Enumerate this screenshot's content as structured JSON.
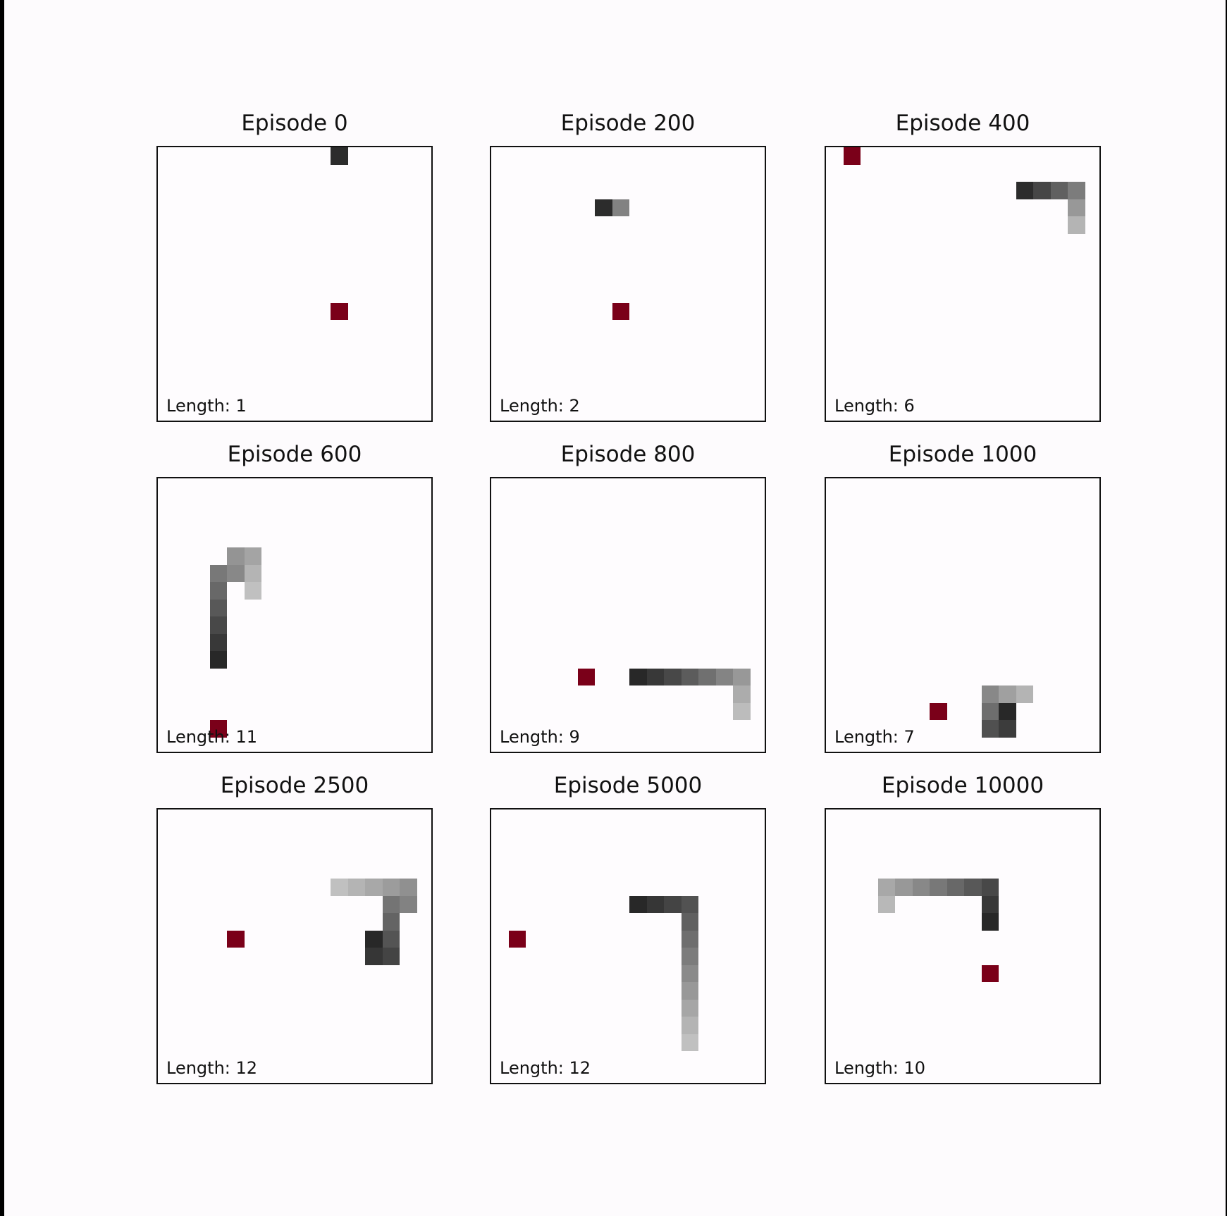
{
  "grid_size": 16,
  "colors": {
    "food": "#7a0019",
    "background": "#fefcfe",
    "border": "#111111"
  },
  "panels": [
    {
      "title": "Episode 0",
      "length_label": "Length: 1",
      "food": [
        10,
        9
      ],
      "snake": [
        [
          10,
          0,
          0.12
        ]
      ]
    },
    {
      "title": "Episode 200",
      "length_label": "Length: 2",
      "food": [
        7,
        9
      ],
      "snake": [
        [
          6,
          3,
          0.12
        ],
        [
          7,
          3,
          0.55
        ]
      ]
    },
    {
      "title": "Episode 400",
      "length_label": "Length: 6",
      "food": [
        1,
        0
      ],
      "snake": [
        [
          11,
          2,
          0.12
        ],
        [
          12,
          2,
          0.25
        ],
        [
          13,
          2,
          0.38
        ],
        [
          14,
          2,
          0.52
        ],
        [
          14,
          3,
          0.66
        ],
        [
          14,
          4,
          0.8
        ]
      ]
    },
    {
      "title": "Episode 600",
      "length_label": "Length: 11",
      "food": [
        3,
        14
      ],
      "snake": [
        [
          3,
          10,
          0.1
        ],
        [
          3,
          9,
          0.18
        ],
        [
          3,
          8,
          0.26
        ],
        [
          3,
          7,
          0.34
        ],
        [
          3,
          6,
          0.42
        ],
        [
          3,
          5,
          0.5
        ],
        [
          4,
          5,
          0.58
        ],
        [
          4,
          4,
          0.64
        ],
        [
          5,
          4,
          0.72
        ],
        [
          5,
          5,
          0.8
        ],
        [
          5,
          6,
          0.86
        ]
      ]
    },
    {
      "title": "Episode 800",
      "length_label": "Length: 9",
      "food": [
        5,
        11
      ],
      "snake": [
        [
          8,
          11,
          0.1
        ],
        [
          9,
          11,
          0.18
        ],
        [
          10,
          11,
          0.26
        ],
        [
          11,
          11,
          0.36
        ],
        [
          12,
          11,
          0.46
        ],
        [
          13,
          11,
          0.56
        ],
        [
          14,
          11,
          0.66
        ],
        [
          14,
          12,
          0.76
        ],
        [
          14,
          13,
          0.84
        ]
      ]
    },
    {
      "title": "Episode 1000",
      "length_label": "Length: 7",
      "food": [
        6,
        13
      ],
      "snake": [
        [
          10,
          13,
          0.1
        ],
        [
          10,
          14,
          0.2
        ],
        [
          9,
          14,
          0.3
        ],
        [
          9,
          13,
          0.45
        ],
        [
          9,
          12,
          0.58
        ],
        [
          10,
          12,
          0.7
        ],
        [
          11,
          12,
          0.8
        ]
      ]
    },
    {
      "title": "Episode 2500",
      "length_label": "Length: 12",
      "food": [
        4,
        7
      ],
      "snake": [
        [
          12,
          7,
          0.1
        ],
        [
          12,
          8,
          0.17
        ],
        [
          13,
          8,
          0.24
        ],
        [
          13,
          7,
          0.32
        ],
        [
          13,
          6,
          0.4
        ],
        [
          13,
          5,
          0.48
        ],
        [
          14,
          5,
          0.55
        ],
        [
          14,
          4,
          0.62
        ],
        [
          13,
          4,
          0.68
        ],
        [
          12,
          4,
          0.74
        ],
        [
          11,
          4,
          0.8
        ],
        [
          10,
          4,
          0.86
        ]
      ]
    },
    {
      "title": "Episode 5000",
      "length_label": "Length: 12",
      "food": [
        1,
        7
      ],
      "snake": [
        [
          8,
          5,
          0.1
        ],
        [
          9,
          5,
          0.17
        ],
        [
          10,
          5,
          0.24
        ],
        [
          11,
          5,
          0.31
        ],
        [
          11,
          6,
          0.38
        ],
        [
          11,
          7,
          0.45
        ],
        [
          11,
          8,
          0.52
        ],
        [
          11,
          9,
          0.59
        ],
        [
          11,
          10,
          0.66
        ],
        [
          11,
          11,
          0.73
        ],
        [
          11,
          12,
          0.8
        ],
        [
          11,
          13,
          0.86
        ]
      ]
    },
    {
      "title": "Episode 10000",
      "length_label": "Length: 10",
      "food": [
        9,
        9
      ],
      "snake": [
        [
          9,
          6,
          0.1
        ],
        [
          9,
          5,
          0.18
        ],
        [
          9,
          4,
          0.26
        ],
        [
          8,
          4,
          0.34
        ],
        [
          7,
          4,
          0.42
        ],
        [
          6,
          4,
          0.5
        ],
        [
          5,
          4,
          0.58
        ],
        [
          4,
          4,
          0.66
        ],
        [
          3,
          4,
          0.74
        ],
        [
          3,
          5,
          0.82
        ]
      ]
    }
  ]
}
